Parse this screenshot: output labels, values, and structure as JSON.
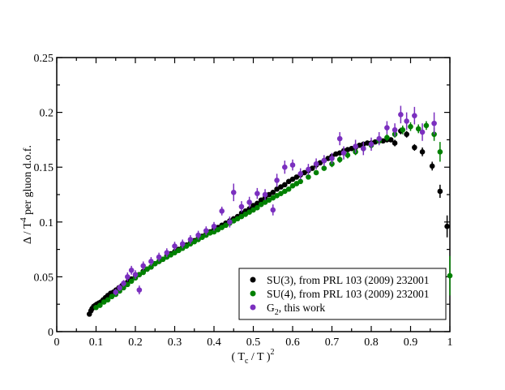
{
  "chart_data": {
    "type": "scatter",
    "xlabel": "( T_c / T )^2",
    "ylabel": "Δ / T^4 per gluon d.o.f.",
    "xlim": [
      0,
      1
    ],
    "ylim": [
      0,
      0.25
    ],
    "xticks": [
      "0",
      "0.1",
      "0.2",
      "0.3",
      "0.4",
      "0.5",
      "0.6",
      "0.7",
      "0.8",
      "0.9",
      "1"
    ],
    "yticks": [
      "0",
      "0.05",
      "0.1",
      "0.15",
      "0.2",
      "0.25"
    ],
    "grid": false,
    "legend_position": "bottom-right",
    "series": [
      {
        "name": "SU(3), from PRL 103 (2009) 232001",
        "color": "#000000",
        "x": [
          0.083,
          0.087,
          0.09,
          0.094,
          0.098,
          0.102,
          0.107,
          0.112,
          0.118,
          0.124,
          0.13,
          0.137,
          0.144,
          0.151,
          0.158,
          0.166,
          0.174,
          0.182,
          0.19,
          0.2,
          0.21,
          0.22,
          0.23,
          0.24,
          0.25,
          0.26,
          0.27,
          0.28,
          0.29,
          0.3,
          0.31,
          0.32,
          0.33,
          0.34,
          0.35,
          0.36,
          0.37,
          0.38,
          0.39,
          0.4,
          0.41,
          0.42,
          0.43,
          0.44,
          0.45,
          0.46,
          0.47,
          0.48,
          0.49,
          0.5,
          0.51,
          0.52,
          0.53,
          0.54,
          0.55,
          0.56,
          0.57,
          0.58,
          0.59,
          0.6,
          0.61,
          0.62,
          0.63,
          0.64,
          0.65,
          0.66,
          0.67,
          0.68,
          0.69,
          0.7,
          0.71,
          0.72,
          0.73,
          0.74,
          0.75,
          0.76,
          0.77,
          0.78,
          0.79,
          0.8,
          0.81,
          0.82,
          0.83,
          0.84,
          0.85,
          0.86,
          0.875,
          0.89,
          0.91,
          0.93,
          0.955,
          0.975,
          0.993
        ],
        "y": [
          0.016,
          0.019,
          0.021,
          0.023,
          0.024,
          0.025,
          0.026,
          0.027,
          0.029,
          0.031,
          0.033,
          0.035,
          0.036,
          0.038,
          0.04,
          0.042,
          0.044,
          0.046,
          0.048,
          0.05,
          0.052,
          0.055,
          0.057,
          0.059,
          0.062,
          0.064,
          0.066,
          0.069,
          0.071,
          0.073,
          0.075,
          0.077,
          0.079,
          0.081,
          0.083,
          0.085,
          0.087,
          0.089,
          0.091,
          0.093,
          0.095,
          0.097,
          0.099,
          0.101,
          0.103,
          0.105,
          0.108,
          0.11,
          0.112,
          0.115,
          0.117,
          0.12,
          0.122,
          0.125,
          0.127,
          0.13,
          0.132,
          0.134,
          0.137,
          0.139,
          0.141,
          0.143,
          0.145,
          0.147,
          0.149,
          0.152,
          0.154,
          0.156,
          0.158,
          0.16,
          0.162,
          0.163,
          0.165,
          0.166,
          0.167,
          0.168,
          0.17,
          0.171,
          0.172,
          0.172,
          0.173,
          0.174,
          0.174,
          0.175,
          0.175,
          0.172,
          0.183,
          0.18,
          0.168,
          0.164,
          0.151,
          0.128,
          0.096
        ],
        "yerr": [
          0.002,
          0.002,
          0.002,
          0.002,
          0.002,
          0.002,
          0.002,
          0.002,
          0.002,
          0.002,
          0.002,
          0.002,
          0.002,
          0.002,
          0.002,
          0.002,
          0.002,
          0.002,
          0.002,
          0.002,
          0.002,
          0.002,
          0.002,
          0.002,
          0.002,
          0.002,
          0.002,
          0.002,
          0.002,
          0.002,
          0.002,
          0.002,
          0.002,
          0.002,
          0.002,
          0.002,
          0.002,
          0.002,
          0.002,
          0.002,
          0.002,
          0.002,
          0.002,
          0.002,
          0.002,
          0.002,
          0.002,
          0.002,
          0.002,
          0.002,
          0.002,
          0.002,
          0.002,
          0.002,
          0.002,
          0.002,
          0.002,
          0.002,
          0.002,
          0.002,
          0.002,
          0.002,
          0.002,
          0.002,
          0.002,
          0.002,
          0.002,
          0.002,
          0.002,
          0.002,
          0.002,
          0.002,
          0.002,
          0.002,
          0.002,
          0.002,
          0.002,
          0.002,
          0.002,
          0.002,
          0.002,
          0.002,
          0.002,
          0.002,
          0.002,
          0.003,
          0.003,
          0.003,
          0.003,
          0.004,
          0.004,
          0.006,
          0.01
        ]
      },
      {
        "name": "SU(4), from PRL 103 (2009) 232001",
        "color": "#008000",
        "x": [
          0.1,
          0.11,
          0.12,
          0.13,
          0.14,
          0.15,
          0.16,
          0.17,
          0.18,
          0.19,
          0.2,
          0.21,
          0.22,
          0.23,
          0.24,
          0.25,
          0.26,
          0.27,
          0.28,
          0.29,
          0.3,
          0.31,
          0.32,
          0.33,
          0.34,
          0.35,
          0.36,
          0.37,
          0.38,
          0.39,
          0.4,
          0.41,
          0.42,
          0.43,
          0.44,
          0.45,
          0.46,
          0.47,
          0.48,
          0.49,
          0.5,
          0.51,
          0.52,
          0.53,
          0.54,
          0.55,
          0.56,
          0.57,
          0.58,
          0.59,
          0.6,
          0.61,
          0.62,
          0.64,
          0.66,
          0.68,
          0.7,
          0.72,
          0.74,
          0.76,
          0.78,
          0.8,
          0.82,
          0.84,
          0.86,
          0.88,
          0.9,
          0.92,
          0.94,
          0.96,
          0.975,
          1.0
        ],
        "y": [
          0.022,
          0.024,
          0.027,
          0.029,
          0.032,
          0.034,
          0.037,
          0.04,
          0.043,
          0.046,
          0.049,
          0.052,
          0.054,
          0.057,
          0.059,
          0.062,
          0.064,
          0.066,
          0.068,
          0.07,
          0.072,
          0.074,
          0.076,
          0.078,
          0.08,
          0.082,
          0.084,
          0.086,
          0.088,
          0.09,
          0.091,
          0.093,
          0.095,
          0.097,
          0.099,
          0.101,
          0.103,
          0.105,
          0.107,
          0.109,
          0.111,
          0.113,
          0.116,
          0.118,
          0.12,
          0.122,
          0.124,
          0.126,
          0.128,
          0.13,
          0.133,
          0.135,
          0.137,
          0.141,
          0.145,
          0.149,
          0.153,
          0.157,
          0.161,
          0.164,
          0.167,
          0.17,
          0.174,
          0.177,
          0.18,
          0.184,
          0.187,
          0.185,
          0.188,
          0.18,
          0.164,
          0.051
        ],
        "yerr": [
          0.002,
          0.002,
          0.002,
          0.002,
          0.002,
          0.002,
          0.002,
          0.002,
          0.002,
          0.002,
          0.002,
          0.002,
          0.002,
          0.002,
          0.002,
          0.002,
          0.002,
          0.002,
          0.002,
          0.002,
          0.002,
          0.002,
          0.002,
          0.002,
          0.002,
          0.002,
          0.002,
          0.002,
          0.002,
          0.002,
          0.002,
          0.002,
          0.002,
          0.002,
          0.002,
          0.002,
          0.002,
          0.002,
          0.002,
          0.002,
          0.002,
          0.002,
          0.002,
          0.002,
          0.002,
          0.002,
          0.002,
          0.002,
          0.002,
          0.002,
          0.002,
          0.002,
          0.002,
          0.002,
          0.002,
          0.002,
          0.003,
          0.003,
          0.003,
          0.003,
          0.003,
          0.003,
          0.003,
          0.003,
          0.003,
          0.004,
          0.004,
          0.004,
          0.004,
          0.006,
          0.009,
          0.018
        ]
      },
      {
        "name": "G_2, this work",
        "color": "#7b2fbf",
        "x": [
          0.15,
          0.16,
          0.17,
          0.18,
          0.19,
          0.2,
          0.21,
          0.22,
          0.24,
          0.26,
          0.28,
          0.3,
          0.32,
          0.34,
          0.36,
          0.38,
          0.4,
          0.42,
          0.44,
          0.45,
          0.47,
          0.49,
          0.51,
          0.53,
          0.55,
          0.56,
          0.58,
          0.6,
          0.62,
          0.64,
          0.66,
          0.68,
          0.7,
          0.72,
          0.73,
          0.76,
          0.78,
          0.8,
          0.82,
          0.84,
          0.86,
          0.875,
          0.89,
          0.91,
          0.93,
          0.96
        ],
        "y": [
          0.036,
          0.04,
          0.044,
          0.05,
          0.056,
          0.052,
          0.038,
          0.06,
          0.064,
          0.068,
          0.072,
          0.078,
          0.08,
          0.084,
          0.088,
          0.092,
          0.096,
          0.11,
          0.1,
          0.127,
          0.114,
          0.118,
          0.126,
          0.125,
          0.111,
          0.138,
          0.15,
          0.152,
          0.144,
          0.148,
          0.153,
          0.156,
          0.158,
          0.176,
          0.163,
          0.169,
          0.167,
          0.171,
          0.176,
          0.186,
          0.184,
          0.198,
          0.192,
          0.197,
          0.182,
          0.19
        ],
        "yerr": [
          0.003,
          0.003,
          0.003,
          0.004,
          0.004,
          0.004,
          0.004,
          0.004,
          0.004,
          0.004,
          0.004,
          0.004,
          0.004,
          0.004,
          0.004,
          0.004,
          0.004,
          0.004,
          0.005,
          0.008,
          0.005,
          0.005,
          0.005,
          0.005,
          0.005,
          0.006,
          0.006,
          0.005,
          0.005,
          0.005,
          0.005,
          0.005,
          0.005,
          0.006,
          0.006,
          0.006,
          0.006,
          0.006,
          0.006,
          0.006,
          0.006,
          0.008,
          0.008,
          0.008,
          0.008,
          0.01
        ],
        "xerr": [
          0.004,
          0.004,
          0.004,
          0.004,
          0.004,
          0.004,
          0.004,
          0.004,
          0.004,
          0.004,
          0.004,
          0.004,
          0.004,
          0.004,
          0.004,
          0.004,
          0.004,
          0.004,
          0.004,
          0.004,
          0.004,
          0.004,
          0.004,
          0.004,
          0.004,
          0.004,
          0.004,
          0.004,
          0.004,
          0.004,
          0.004,
          0.004,
          0.004,
          0.004,
          0.004,
          0.004,
          0.004,
          0.004,
          0.004,
          0.004,
          0.004,
          0.004,
          0.004,
          0.004,
          0.004,
          0.004
        ]
      }
    ]
  }
}
